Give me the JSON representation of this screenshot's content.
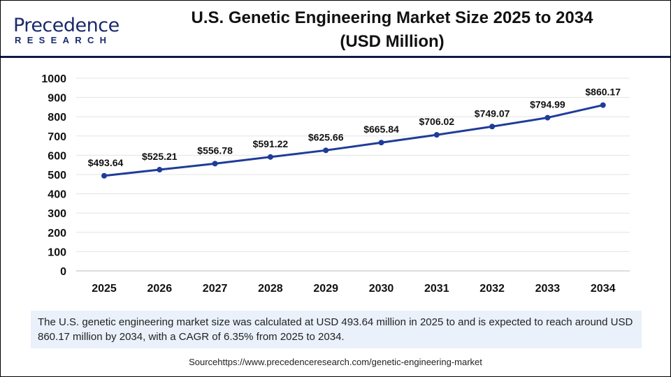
{
  "logo": {
    "line1": "Precedence",
    "line2": "RESEARCH"
  },
  "title_lines": [
    "U.S. Genetic Engineering Market  Size 2025 to 2034",
    "(USD Million)"
  ],
  "chart_data": {
    "type": "line",
    "title": "U.S. Genetic Engineering Market  Size 2025 to 2034 (USD Million)",
    "categories": [
      "2025",
      "2026",
      "2027",
      "2028",
      "2029",
      "2030",
      "2031",
      "2032",
      "2033",
      "2034"
    ],
    "values": [
      493.64,
      525.21,
      556.78,
      591.22,
      625.66,
      665.84,
      706.02,
      749.07,
      794.99,
      860.17
    ],
    "data_labels": [
      "$493.64",
      "$525.21",
      "$556.78",
      "$591.22",
      "$625.66",
      "$665.84",
      "$706.02",
      "$749.07",
      "$794.99",
      "$860.17"
    ],
    "ylim": [
      0,
      1000
    ],
    "yticks": [
      "0",
      "100",
      "200",
      "300",
      "400",
      "500",
      "600",
      "700",
      "800",
      "900",
      "1000"
    ],
    "grid": true,
    "line_color": "#1f3c99"
  },
  "note": "The U.S. genetic engineering market size was calculated at USD 493.64 million in 2025 to and is expected to reach around USD 860.17 million by 2034, with a CAGR of 6.35% from 2025 to 2034.",
  "source": "Sourcehttps://www.precedenceresearch.com/genetic-engineering-market"
}
